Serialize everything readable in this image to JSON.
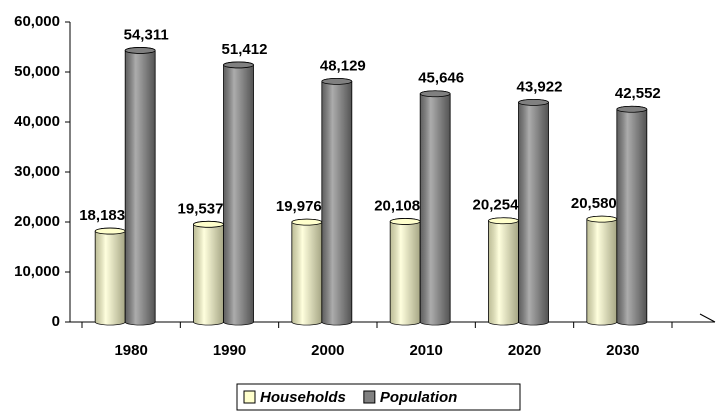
{
  "chart_data": {
    "type": "bar",
    "categories": [
      "1980",
      "1990",
      "2000",
      "2010",
      "2020",
      "2030"
    ],
    "series": [
      {
        "name": "Households",
        "color": "#ffffcc",
        "values": [
          18183,
          19537,
          19976,
          20108,
          20254,
          20580
        ],
        "value_labels": [
          "18,183",
          "19,537",
          "19,976",
          "20,108",
          "20,254",
          "20,580"
        ]
      },
      {
        "name": "Population",
        "color": "#808080",
        "values": [
          54311,
          51412,
          48129,
          45646,
          43922,
          42552
        ],
        "value_labels": [
          "54,311",
          "51,412",
          "48,129",
          "45,646",
          "43,922",
          "42,552"
        ]
      }
    ],
    "ylim": [
      0,
      60000
    ],
    "yticks": [
      {
        "value": 0,
        "label": "0"
      },
      {
        "value": 10000,
        "label": "10,000"
      },
      {
        "value": 20000,
        "label": "20,000"
      },
      {
        "value": 30000,
        "label": "30,000"
      },
      {
        "value": 40000,
        "label": "40,000"
      },
      {
        "value": 50000,
        "label": "50,000"
      },
      {
        "value": 60000,
        "label": "60,000"
      }
    ],
    "legend": "bottom"
  }
}
